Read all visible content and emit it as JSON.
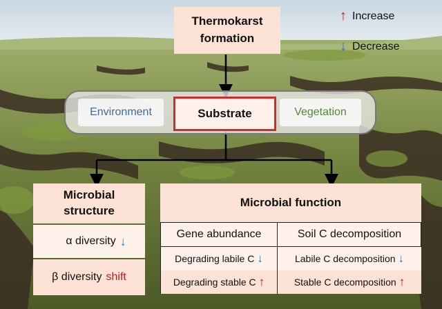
{
  "top": {
    "label_line1": "Thermokarst",
    "label_line2": "formation"
  },
  "legend": {
    "increase_label": "Increase",
    "decrease_label": "Decrease",
    "increase_symbol": "↑",
    "decrease_symbol": "↓"
  },
  "band": {
    "environment": "Environment",
    "substrate": "Substrate",
    "vegetation": "Vegetation"
  },
  "structure": {
    "title_line1": "Microbial",
    "title_line2": "structure",
    "alpha_label": "α diversity",
    "alpha_arrow": "↓",
    "beta_label": "β diversity",
    "beta_value": "shift"
  },
  "function": {
    "title": "Microbial function",
    "col1_header": "Gene abundance",
    "col2_header": "Soil C decomposition",
    "rows": [
      {
        "left": "Degrading labile C",
        "left_arrow": "↓",
        "right": "Labile C decomposition",
        "right_arrow": "↓"
      },
      {
        "left": "Degrading stable C",
        "left_arrow": "↑",
        "right": "Stable C decomposition",
        "right_arrow": "↑"
      }
    ]
  },
  "colors": {
    "up": "#c0121b",
    "down": "#3a6fc4",
    "env_text": "#3b6aa8",
    "veg_text": "#4f8a3a",
    "shift_text": "#b8211b"
  }
}
